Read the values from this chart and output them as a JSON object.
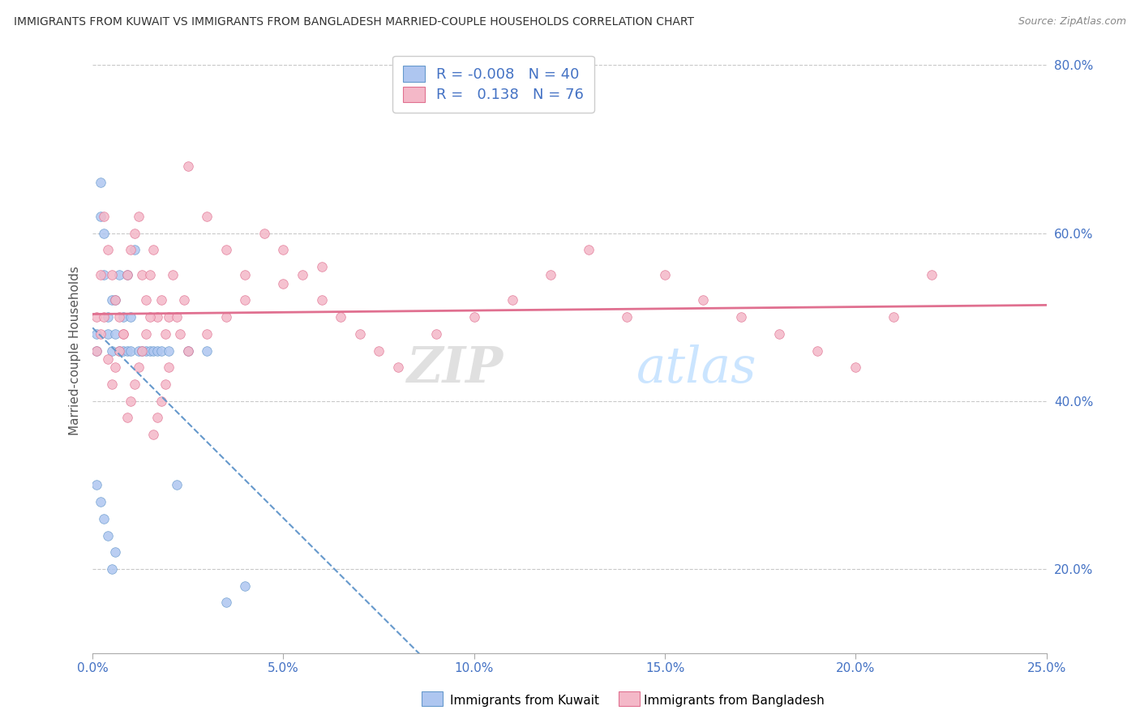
{
  "title": "IMMIGRANTS FROM KUWAIT VS IMMIGRANTS FROM BANGLADESH MARRIED-COUPLE HOUSEHOLDS CORRELATION CHART",
  "source": "Source: ZipAtlas.com",
  "xlabel_kuwait": "Immigrants from Kuwait",
  "xlabel_bangladesh": "Immigrants from Bangladesh",
  "ylabel": "Married-couple Households",
  "xlim": [
    0.0,
    0.25
  ],
  "ylim": [
    0.1,
    0.82
  ],
  "xticks": [
    0.0,
    0.05,
    0.1,
    0.15,
    0.2,
    0.25
  ],
  "yticks": [
    0.2,
    0.4,
    0.6,
    0.8
  ],
  "kuwait_color": "#aec6f0",
  "kuwait_edge_color": "#6699cc",
  "bangladesh_color": "#f4b8c8",
  "bangladesh_edge_color": "#e07090",
  "kuwait_line_color": "#6699cc",
  "bangladesh_line_color": "#e07090",
  "R_kuwait": -0.008,
  "N_kuwait": 40,
  "R_bangladesh": 0.138,
  "N_bangladesh": 76,
  "kuwait_x": [
    0.001,
    0.001,
    0.002,
    0.002,
    0.003,
    0.003,
    0.004,
    0.004,
    0.005,
    0.005,
    0.006,
    0.006,
    0.007,
    0.007,
    0.008,
    0.008,
    0.009,
    0.009,
    0.01,
    0.01,
    0.011,
    0.012,
    0.013,
    0.014,
    0.015,
    0.016,
    0.017,
    0.018,
    0.02,
    0.022,
    0.025,
    0.03,
    0.035,
    0.04,
    0.001,
    0.002,
    0.003,
    0.004,
    0.005,
    0.006
  ],
  "kuwait_y": [
    0.46,
    0.48,
    0.62,
    0.66,
    0.55,
    0.6,
    0.5,
    0.48,
    0.52,
    0.46,
    0.48,
    0.52,
    0.55,
    0.46,
    0.5,
    0.46,
    0.46,
    0.55,
    0.46,
    0.5,
    0.58,
    0.46,
    0.46,
    0.46,
    0.46,
    0.46,
    0.46,
    0.46,
    0.46,
    0.3,
    0.46,
    0.46,
    0.16,
    0.18,
    0.3,
    0.28,
    0.26,
    0.24,
    0.2,
    0.22
  ],
  "bangladesh_x": [
    0.001,
    0.002,
    0.003,
    0.004,
    0.005,
    0.006,
    0.007,
    0.008,
    0.009,
    0.01,
    0.011,
    0.012,
    0.013,
    0.014,
    0.015,
    0.016,
    0.017,
    0.018,
    0.019,
    0.02,
    0.021,
    0.022,
    0.023,
    0.024,
    0.025,
    0.03,
    0.035,
    0.04,
    0.045,
    0.05,
    0.055,
    0.06,
    0.065,
    0.07,
    0.075,
    0.08,
    0.09,
    0.1,
    0.11,
    0.12,
    0.13,
    0.14,
    0.15,
    0.16,
    0.17,
    0.18,
    0.19,
    0.2,
    0.21,
    0.22,
    0.001,
    0.002,
    0.003,
    0.004,
    0.005,
    0.006,
    0.007,
    0.008,
    0.009,
    0.01,
    0.011,
    0.012,
    0.013,
    0.014,
    0.015,
    0.016,
    0.017,
    0.018,
    0.019,
    0.02,
    0.025,
    0.03,
    0.035,
    0.04,
    0.05,
    0.06
  ],
  "bangladesh_y": [
    0.5,
    0.55,
    0.62,
    0.58,
    0.55,
    0.52,
    0.5,
    0.48,
    0.55,
    0.58,
    0.6,
    0.62,
    0.55,
    0.52,
    0.55,
    0.58,
    0.5,
    0.52,
    0.48,
    0.5,
    0.55,
    0.5,
    0.48,
    0.52,
    0.68,
    0.62,
    0.58,
    0.55,
    0.6,
    0.58,
    0.55,
    0.52,
    0.5,
    0.48,
    0.46,
    0.44,
    0.48,
    0.5,
    0.52,
    0.55,
    0.58,
    0.5,
    0.55,
    0.52,
    0.5,
    0.48,
    0.46,
    0.44,
    0.5,
    0.55,
    0.46,
    0.48,
    0.5,
    0.45,
    0.42,
    0.44,
    0.46,
    0.48,
    0.38,
    0.4,
    0.42,
    0.44,
    0.46,
    0.48,
    0.5,
    0.36,
    0.38,
    0.4,
    0.42,
    0.44,
    0.46,
    0.48,
    0.5,
    0.52,
    0.54,
    0.56
  ]
}
